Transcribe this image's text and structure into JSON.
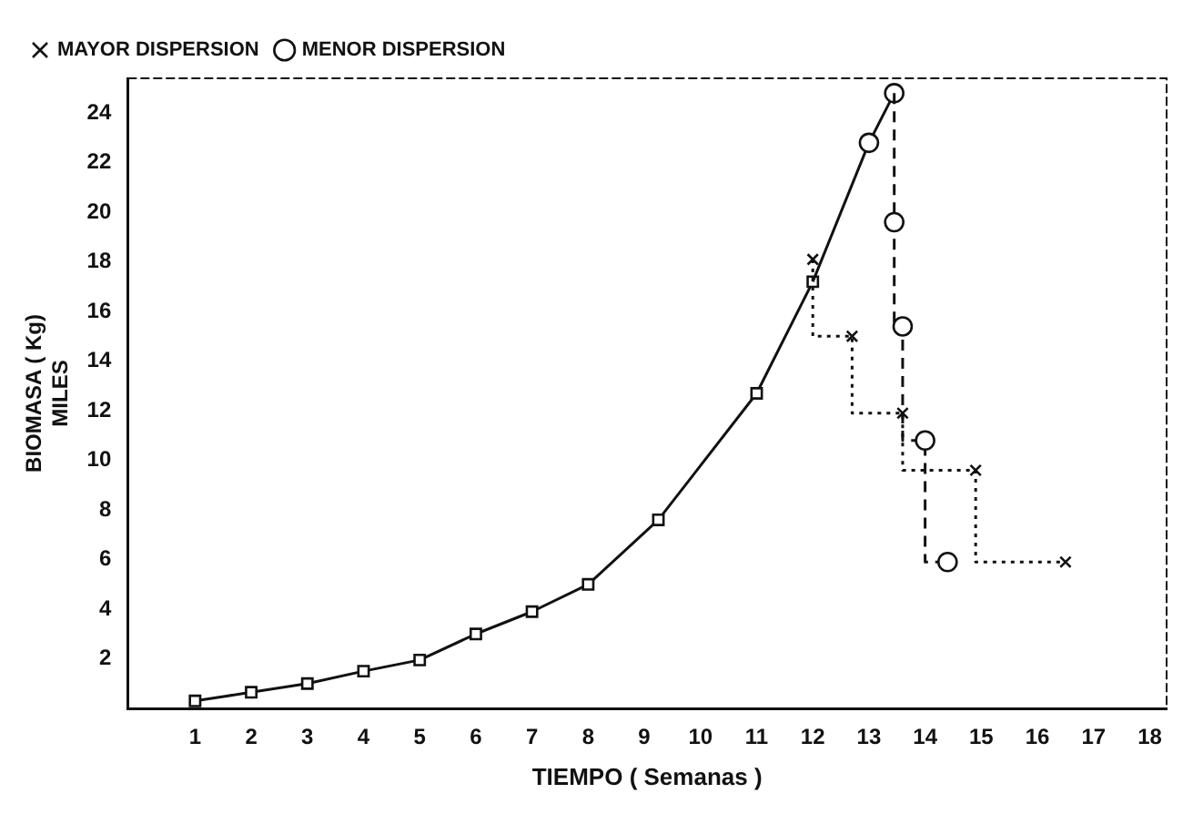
{
  "chart_data": {
    "type": "line",
    "xlabel": "TIEMPO ( Semanas )",
    "ylabel": "BIOMASA ( Kg)\nMILES",
    "series": [
      {
        "type": "line",
        "color": "#111111",
        "marker": "square",
        "line_style": "solid",
        "x": [
          1,
          2,
          3,
          4,
          5,
          6,
          7,
          8,
          9.25,
          11,
          12
        ],
        "values": [
          0.3,
          0.65,
          1.0,
          1.5,
          1.95,
          3.0,
          3.9,
          5.0,
          7.6,
          12.7,
          17.2
        ]
      },
      {
        "type": "line",
        "name": "MENOR DISPERSION",
        "color": "#111111",
        "marker": "circle",
        "line_style": "solid",
        "x": [
          12,
          13,
          13.45
        ],
        "values": [
          17.2,
          22.8,
          24.8
        ]
      },
      {
        "type": "step",
        "color": "#111111",
        "marker": "circle",
        "line_style": "dashed",
        "x": [
          13.45,
          13.45,
          13.6,
          14.0,
          14.4
        ],
        "values": [
          24.8,
          19.6,
          15.4,
          10.8,
          5.9
        ]
      },
      {
        "type": "step",
        "name": "MAYOR DISPERSION",
        "color": "#111111",
        "marker": "cross",
        "line_style": "dotted",
        "x": [
          12,
          12.7,
          13.6,
          14.9,
          16.5
        ],
        "values": [
          18.1,
          15.0,
          11.9,
          9.6,
          5.9
        ]
      }
    ],
    "xlim": [
      -0.2,
      18.3
    ],
    "xticks": [
      1,
      2,
      3,
      4,
      5,
      6,
      7,
      8,
      9,
      10,
      11,
      12,
      13,
      14,
      15,
      16,
      17,
      18
    ],
    "ylim": [
      0,
      25.4
    ],
    "yticks": [
      2,
      4,
      6,
      8,
      10,
      12,
      14,
      16,
      18,
      20,
      22,
      24
    ],
    "grid": false,
    "legend": "top left"
  }
}
